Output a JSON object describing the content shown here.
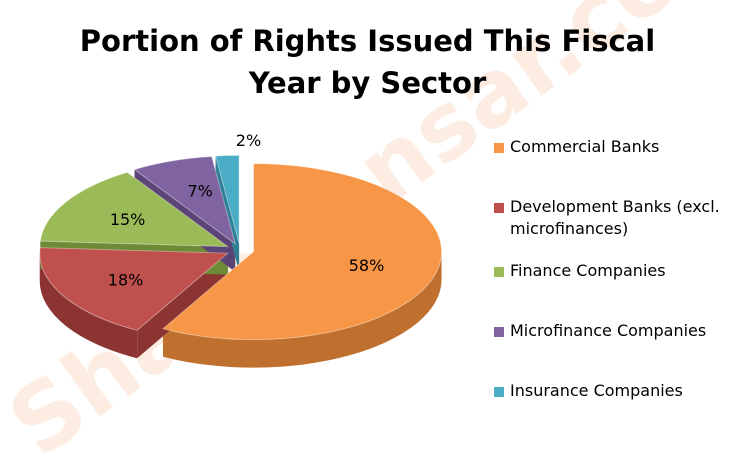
{
  "watermark": {
    "text": "ShareSansar.com"
  },
  "chart_data": {
    "type": "pie",
    "title": "Portion of Rights Issued This Fiscal Year by Sector",
    "title_lines": [
      "Portion of Rights Issued This Fiscal",
      "Year by Sector"
    ],
    "categories": [
      "Commercial Banks",
      "Development Banks (excl. microfinances)",
      "Finance Companies",
      "Microfinance Companies",
      "Insurance Companies"
    ],
    "legend_lines": [
      [
        "Commercial Banks"
      ],
      [
        "Development Banks (excl.",
        "microfinances)"
      ],
      [
        "Finance Companies"
      ],
      [
        "Microfinance Companies"
      ],
      [
        "Insurance Companies"
      ]
    ],
    "values": [
      58,
      18,
      15,
      7,
      2
    ],
    "data_labels": [
      "58%",
      "18%",
      "15%",
      "7%",
      "2%"
    ],
    "colors": {
      "top": [
        "#F79646",
        "#C0504D",
        "#9BBB59",
        "#8064A2",
        "#4BACC6"
      ],
      "side": [
        "#C0702E",
        "#8C3431",
        "#6E8A36",
        "#5B4476",
        "#2F8096"
      ]
    },
    "legend_position": "right",
    "style": "3d-exploded"
  }
}
